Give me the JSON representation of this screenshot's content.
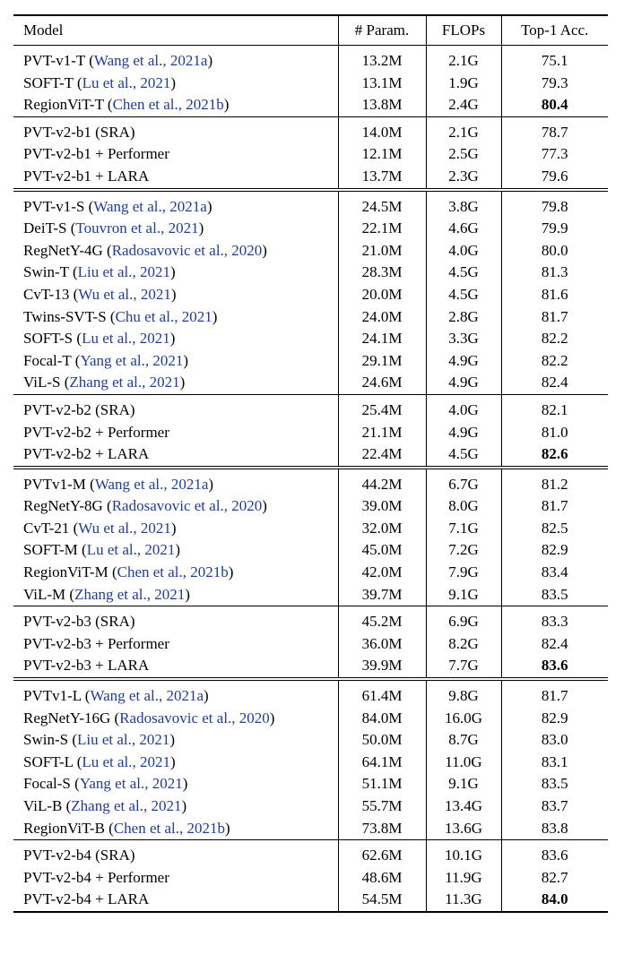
{
  "columns": [
    "Model",
    "# Param.",
    "FLOPs",
    "Top-1 Acc."
  ],
  "groups": [
    {
      "sep": "single",
      "rows": [
        {
          "model": "PVT-v1-T",
          "cite": "Wang et al., 2021a",
          "param": "13.2M",
          "flops": "2.1G",
          "acc": "75.1"
        },
        {
          "model": "SOFT-T",
          "cite": "Lu et al., 2021",
          "param": "13.1M",
          "flops": "1.9G",
          "acc": "79.3"
        },
        {
          "model": "RegionViT-T",
          "cite": "Chen et al., 2021b",
          "param": "13.8M",
          "flops": "2.4G",
          "acc": "80.4",
          "bold": true
        }
      ]
    },
    {
      "sep": "single",
      "rows": [
        {
          "model": "PVT-v2-b1 (SRA)",
          "cite": "",
          "param": "14.0M",
          "flops": "2.1G",
          "acc": "78.7"
        },
        {
          "model": "PVT-v2-b1 + Performer",
          "cite": "",
          "param": "12.1M",
          "flops": "2.5G",
          "acc": "77.3"
        },
        {
          "model": "PVT-v2-b1 + LARA",
          "cite": "",
          "param": "13.7M",
          "flops": "2.3G",
          "acc": "79.6"
        }
      ]
    },
    {
      "sep": "double",
      "rows": [
        {
          "model": "PVT-v1-S",
          "cite": "Wang et al., 2021a",
          "param": "24.5M",
          "flops": "3.8G",
          "acc": "79.8"
        },
        {
          "model": "DeiT-S",
          "cite": "Touvron et al., 2021",
          "param": "22.1M",
          "flops": "4.6G",
          "acc": "79.9"
        },
        {
          "model": "RegNetY-4G",
          "cite": "Radosavovic et al., 2020",
          "param": "21.0M",
          "flops": "4.0G",
          "acc": "80.0"
        },
        {
          "model": "Swin-T",
          "cite": "Liu et al., 2021",
          "param": "28.3M",
          "flops": "4.5G",
          "acc": "81.3"
        },
        {
          "model": "CvT-13",
          "cite": "Wu et al., 2021",
          "param": "20.0M",
          "flops": "4.5G",
          "acc": "81.6"
        },
        {
          "model": "Twins-SVT-S",
          "cite": "Chu et al., 2021",
          "param": "24.0M",
          "flops": "2.8G",
          "acc": "81.7"
        },
        {
          "model": "SOFT-S",
          "cite": "Lu et al., 2021",
          "param": "24.1M",
          "flops": "3.3G",
          "acc": "82.2"
        },
        {
          "model": "Focal-T",
          "cite": "Yang et al., 2021",
          "param": "29.1M",
          "flops": "4.9G",
          "acc": "82.2"
        },
        {
          "model": "ViL-S",
          "cite": "Zhang et al., 2021",
          "param": "24.6M",
          "flops": "4.9G",
          "acc": "82.4"
        }
      ]
    },
    {
      "sep": "single",
      "rows": [
        {
          "model": "PVT-v2-b2 (SRA)",
          "cite": "",
          "param": "25.4M",
          "flops": "4.0G",
          "acc": "82.1"
        },
        {
          "model": "PVT-v2-b2 + Performer",
          "cite": "",
          "param": "21.1M",
          "flops": "4.9G",
          "acc": "81.0"
        },
        {
          "model": "PVT-v2-b2 + LARA",
          "cite": "",
          "param": "22.4M",
          "flops": "4.5G",
          "acc": "82.6",
          "bold": true
        }
      ]
    },
    {
      "sep": "double",
      "rows": [
        {
          "model": "PVTv1-M",
          "cite": "Wang et al., 2021a",
          "param": "44.2M",
          "flops": "6.7G",
          "acc": "81.2"
        },
        {
          "model": "RegNetY-8G",
          "cite": "Radosavovic et al., 2020",
          "param": "39.0M",
          "flops": "8.0G",
          "acc": "81.7"
        },
        {
          "model": "CvT-21",
          "cite": "Wu et al., 2021",
          "param": "32.0M",
          "flops": "7.1G",
          "acc": "82.5"
        },
        {
          "model": "SOFT-M",
          "cite": "Lu et al., 2021",
          "param": "45.0M",
          "flops": "7.2G",
          "acc": "82.9"
        },
        {
          "model": "RegionViT-M",
          "cite": "Chen et al., 2021b",
          "param": "42.0M",
          "flops": "7.9G",
          "acc": "83.4"
        },
        {
          "model": "ViL-M",
          "cite": "Zhang et al., 2021",
          "param": "39.7M",
          "flops": "9.1G",
          "acc": "83.5"
        }
      ]
    },
    {
      "sep": "single",
      "rows": [
        {
          "model": "PVT-v2-b3 (SRA)",
          "cite": "",
          "param": "45.2M",
          "flops": "6.9G",
          "acc": "83.3"
        },
        {
          "model": "PVT-v2-b3 + Performer",
          "cite": "",
          "param": "36.0M",
          "flops": "8.2G",
          "acc": "82.4"
        },
        {
          "model": "PVT-v2-b3 + LARA",
          "cite": "",
          "param": "39.9M",
          "flops": "7.7G",
          "acc": "83.6",
          "bold": true
        }
      ]
    },
    {
      "sep": "double",
      "rows": [
        {
          "model": "PVTv1-L",
          "cite": "Wang et al., 2021a",
          "param": "61.4M",
          "flops": "9.8G",
          "acc": "81.7"
        },
        {
          "model": "RegNetY-16G",
          "cite": "Radosavovic et al., 2020",
          "param": "84.0M",
          "flops": "16.0G",
          "acc": "82.9"
        },
        {
          "model": "Swin-S",
          "cite": "Liu et al., 2021",
          "param": "50.0M",
          "flops": "8.7G",
          "acc": "83.0"
        },
        {
          "model": "SOFT-L",
          "cite": "Lu et al., 2021",
          "param": "64.1M",
          "flops": "11.0G",
          "acc": "83.1"
        },
        {
          "model": "Focal-S",
          "cite": "Yang et al., 2021",
          "param": "51.1M",
          "flops": "9.1G",
          "acc": "83.5"
        },
        {
          "model": "ViL-B",
          "cite": "Zhang et al., 2021",
          "param": "55.7M",
          "flops": "13.4G",
          "acc": "83.7"
        },
        {
          "model": "RegionViT-B",
          "cite": "Chen et al., 2021b",
          "param": "73.8M",
          "flops": "13.6G",
          "acc": "83.8"
        }
      ]
    },
    {
      "sep": "single",
      "rows": [
        {
          "model": "PVT-v2-b4 (SRA)",
          "cite": "",
          "param": "62.6M",
          "flops": "10.1G",
          "acc": "83.6"
        },
        {
          "model": "PVT-v2-b4 + Performer",
          "cite": "",
          "param": "48.6M",
          "flops": "11.9G",
          "acc": "82.7"
        },
        {
          "model": "PVT-v2-b4 + LARA",
          "cite": "",
          "param": "54.5M",
          "flops": "11.3G",
          "acc": "84.0",
          "bold": true
        }
      ]
    }
  ],
  "colors": {
    "citation": "#1f3d99",
    "text": "#000000"
  }
}
